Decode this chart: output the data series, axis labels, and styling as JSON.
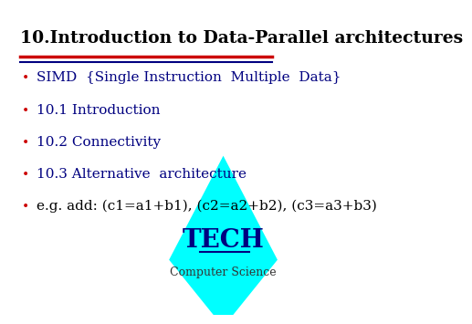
{
  "title": "10.Introduction to Data-Parallel architectures",
  "title_color": "#000000",
  "title_fontsize": 13.5,
  "line1_color": "#CC0000",
  "line2_color": "#000080",
  "bullet_color": "#CC0000",
  "bullet_items": [
    "SIMD  {Single Instruction  Multiple  Data}",
    "10.1 Introduction",
    "10.2 Connectivity",
    "10.3 Alternative  architecture"
  ],
  "bullet_items2": [
    "e.g. add: (c1=a1+b1), (c2=a2+b2), (c3=a3+b3)"
  ],
  "bullet_fontsize": 11,
  "text_color": "#000080",
  "eg_color": "#000000",
  "tech_color": "#000080",
  "cs_color": "#333333",
  "triangle_color": "#00FFFF",
  "tech_label": "TECH",
  "cs_label": "Computer Science",
  "bg_color": "#FFFFFF"
}
